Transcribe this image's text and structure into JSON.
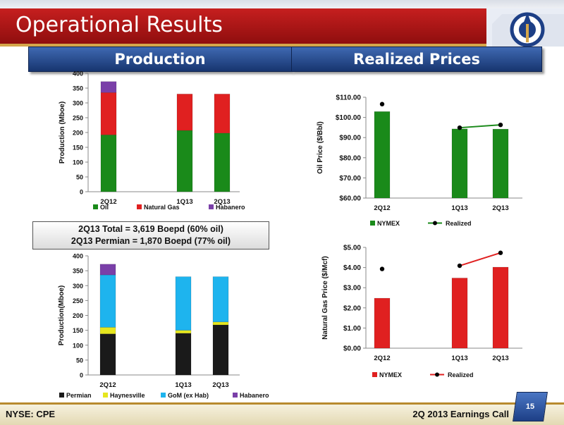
{
  "slide": {
    "title": "Operational Results"
  },
  "sections": {
    "production": "Production",
    "prices": "Realized Prices"
  },
  "info_box": {
    "line1": "2Q13 Total = 3,619 Boepd (60% oil)",
    "line2": "2Q13 Permian = 1,870 Boepd (77% oil)"
  },
  "footer": {
    "left": "NYSE: CPE",
    "right": "2Q 2013 Earnings Call",
    "page": "15"
  },
  "chart_data": [
    {
      "id": "prod_type",
      "type": "bar",
      "stacked": true,
      "categories": [
        "2Q12",
        "",
        "1Q13",
        "2Q13"
      ],
      "ylabel": "Production (Mboe)",
      "ylim": [
        0,
        400
      ],
      "yticks": [
        0,
        50,
        100,
        150,
        200,
        250,
        300,
        350,
        400
      ],
      "tick_labels": [
        "0",
        "50",
        "100",
        "150",
        "200",
        "250",
        "300",
        "350",
        "400"
      ],
      "legend_position": "bottom",
      "series": [
        {
          "name": "Oil",
          "color": "#1a8a1a",
          "values": [
            192,
            null,
            207,
            198
          ]
        },
        {
          "name": "Natural Gas",
          "color": "#e02020",
          "values": [
            143,
            null,
            123,
            132
          ]
        },
        {
          "name": "Habanero",
          "color": "#7a3fa8",
          "values": [
            37,
            null,
            null,
            null
          ]
        }
      ]
    },
    {
      "id": "prod_area",
      "type": "bar",
      "stacked": true,
      "categories": [
        "2Q12",
        "",
        "1Q13",
        "2Q13"
      ],
      "ylabel": "Production(Mboe)",
      "ylim": [
        0,
        400
      ],
      "yticks": [
        0,
        50,
        100,
        150,
        200,
        250,
        300,
        350,
        400
      ],
      "tick_labels": [
        "0",
        "50",
        "100",
        "150",
        "200",
        "250",
        "300",
        "350",
        "400"
      ],
      "legend_position": "bottom",
      "series": [
        {
          "name": "Permian",
          "color": "#1a1a1a",
          "values": [
            138,
            null,
            140,
            168
          ]
        },
        {
          "name": "Haynesville",
          "color": "#e6e61e",
          "values": [
            22,
            null,
            10,
            10
          ]
        },
        {
          "name": "GoM (ex Hab)",
          "color": "#1eb4ee",
          "values": [
            176,
            null,
            180,
            152
          ]
        },
        {
          "name": "Habanero",
          "color": "#7a3fa8",
          "values": [
            36,
            null,
            null,
            null
          ]
        }
      ]
    },
    {
      "id": "oil_price",
      "type": "bar",
      "categories": [
        "2Q12",
        "",
        "1Q13",
        "2Q13"
      ],
      "ylabel": "Oil Price ($/Bbl)",
      "ylim": [
        60,
        110
      ],
      "yticks": [
        60,
        70,
        80,
        90,
        100,
        110
      ],
      "tick_labels": [
        "$60.00",
        "$70.00",
        "$80.00",
        "$90.00",
        "$100.00",
        "$110.00"
      ],
      "legend_position": "bottom",
      "bar_series": {
        "name": "NYMEX",
        "color": "#1a8a1a",
        "values": [
          102.9,
          null,
          94.3,
          94.2
        ]
      },
      "line_series": {
        "name": "Realized",
        "color": "#1a8a1a",
        "values": [
          106.6,
          null,
          94.9,
          96.3
        ],
        "connect_from": 2
      }
    },
    {
      "id": "gas_price",
      "type": "bar",
      "categories": [
        "2Q12",
        "",
        "1Q13",
        "2Q13"
      ],
      "ylabel": "Natural Gas Price ($/Mcf)",
      "ylim": [
        0,
        5
      ],
      "yticks": [
        0,
        1,
        2,
        3,
        4,
        5
      ],
      "tick_labels": [
        "$0.00",
        "$1.00",
        "$2.00",
        "$3.00",
        "$4.00",
        "$5.00"
      ],
      "legend_position": "bottom",
      "bar_series": {
        "name": "NYMEX",
        "color": "#e02020",
        "values": [
          2.48,
          null,
          3.48,
          4.02
        ]
      },
      "line_series": {
        "name": "Realized",
        "color": "#e02020",
        "values": [
          3.93,
          null,
          4.09,
          4.73
        ],
        "connect_from": 2
      }
    }
  ]
}
